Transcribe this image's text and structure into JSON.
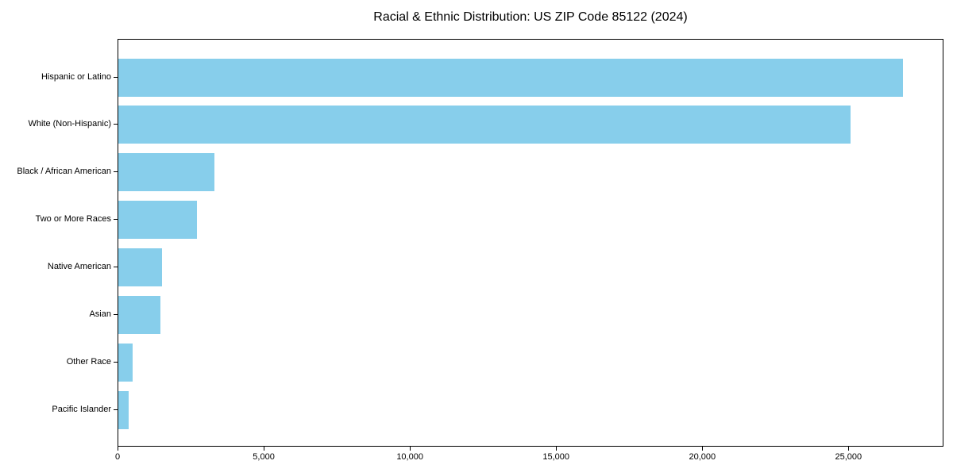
{
  "chart_data": {
    "type": "bar",
    "orientation": "horizontal",
    "title": "Racial & Ethnic Distribution: US ZIP Code 85122 (2024)",
    "categories": [
      "Hispanic or Latino",
      "White (Non-Hispanic)",
      "Black / African American",
      "Two or More Races",
      "Native American",
      "Asian",
      "Other Race",
      "Pacific Islander"
    ],
    "values": [
      26850,
      25050,
      3280,
      2680,
      1490,
      1440,
      490,
      360
    ],
    "xlabel": "",
    "ylabel": "",
    "xlim": [
      0,
      28250
    ],
    "xticks": [
      {
        "value": 0,
        "label": "0"
      },
      {
        "value": 5000,
        "label": "5,000"
      },
      {
        "value": 10000,
        "label": "10,000"
      },
      {
        "value": 15000,
        "label": "15,000"
      },
      {
        "value": 20000,
        "label": "20,000"
      },
      {
        "value": 25000,
        "label": "25,000"
      }
    ],
    "grid": false,
    "legend": null,
    "bar_color": "#87CEEB",
    "axis_color": "#000000",
    "text_color": "#000000",
    "background_color": "#ffffff"
  }
}
